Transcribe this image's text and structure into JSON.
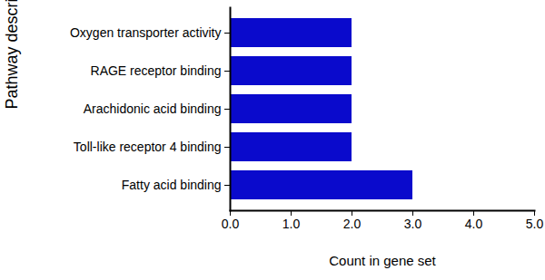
{
  "chart_data": {
    "type": "bar",
    "orientation": "horizontal",
    "x_label": "Count in gene set",
    "y_label": "Pathway description",
    "categories": [
      "Oxygen transporter activity",
      "RAGE receptor binding",
      "Arachidonic acid binding",
      "Toll-like receptor 4 binding",
      "Fatty acid binding"
    ],
    "values": [
      2,
      2,
      2,
      2,
      3
    ],
    "color": "#0a0acc",
    "xlim": [
      0,
      5
    ],
    "xticks": [
      0,
      1,
      2,
      3,
      4,
      5
    ],
    "grid": false
  }
}
